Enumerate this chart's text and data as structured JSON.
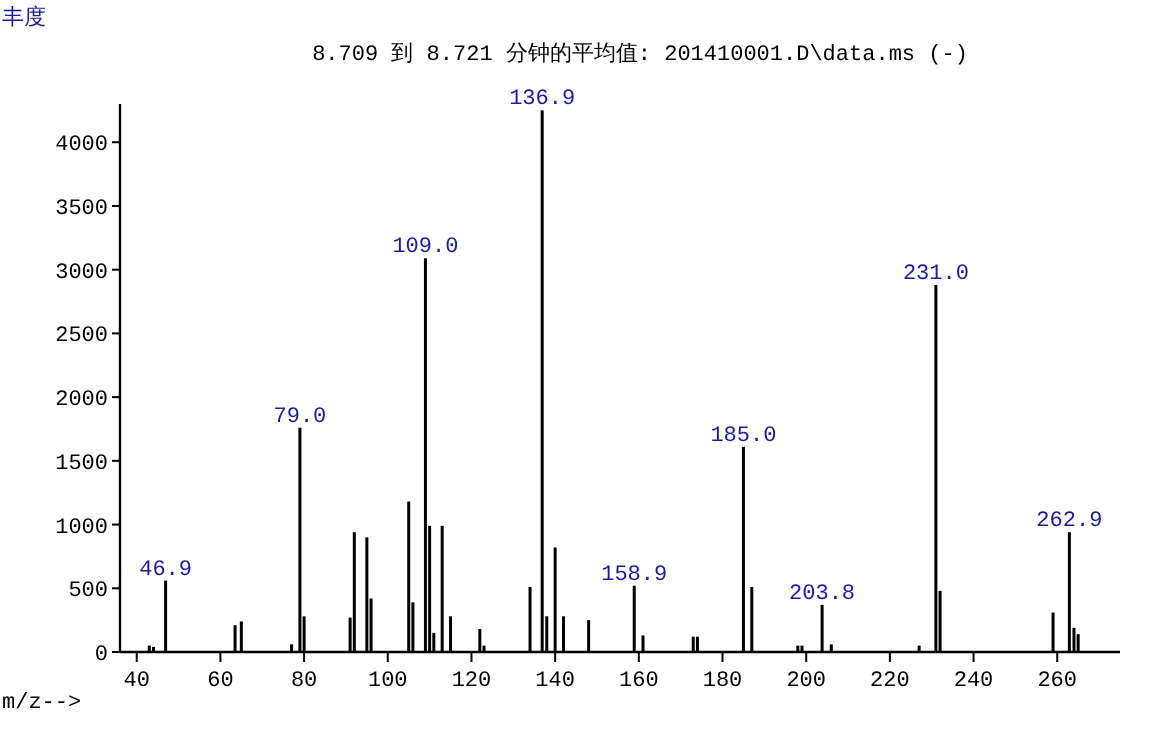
{
  "chart_data": {
    "type": "bar",
    "title": "8.709 到 8.721 分钟的平均值: 201410001.D\\data.ms (-)",
    "xlabel": "m/z-->",
    "ylabel": "丰度",
    "x": [
      43,
      44,
      46.9,
      63.5,
      65,
      77,
      79.0,
      80,
      91,
      92,
      95,
      96,
      105,
      106,
      109.0,
      110,
      111,
      113,
      115,
      122,
      123,
      134,
      136.9,
      138,
      140,
      142,
      148,
      158.9,
      161,
      173,
      174,
      185.0,
      187,
      198,
      199,
      203.8,
      206,
      227,
      231.0,
      232,
      259,
      262.9,
      264,
      265
    ],
    "values": [
      50,
      40,
      560,
      210,
      240,
      60,
      1760,
      280,
      270,
      940,
      900,
      420,
      1180,
      390,
      3090,
      990,
      150,
      990,
      280,
      180,
      50,
      510,
      4250,
      280,
      820,
      280,
      250,
      520,
      130,
      120,
      120,
      1610,
      510,
      50,
      50,
      370,
      60,
      50,
      2880,
      480,
      310,
      940,
      190,
      140
    ],
    "color": "#000000",
    "xlim": [
      36,
      275
    ],
    "ylim": [
      0,
      4300
    ],
    "xticks": [
      40,
      60,
      80,
      100,
      120,
      140,
      160,
      180,
      200,
      220,
      240,
      260
    ],
    "yticks": [
      0,
      500,
      1000,
      1500,
      2000,
      2500,
      3000,
      3500,
      4000
    ],
    "annotations": [
      {
        "text": "46.9",
        "x": 46.9,
        "y": 560
      },
      {
        "text": "79.0",
        "x": 79.0,
        "y": 1760
      },
      {
        "text": "109.0",
        "x": 109.0,
        "y": 3090
      },
      {
        "text": "136.9",
        "x": 136.9,
        "y": 4250
      },
      {
        "text": "158.9",
        "x": 158.9,
        "y": 520
      },
      {
        "text": "185.0",
        "x": 185.0,
        "y": 1610
      },
      {
        "text": "203.8",
        "x": 203.8,
        "y": 370
      },
      {
        "text": "231.0",
        "x": 231.0,
        "y": 2880
      },
      {
        "text": "262.9",
        "x": 262.9,
        "y": 940
      }
    ]
  }
}
